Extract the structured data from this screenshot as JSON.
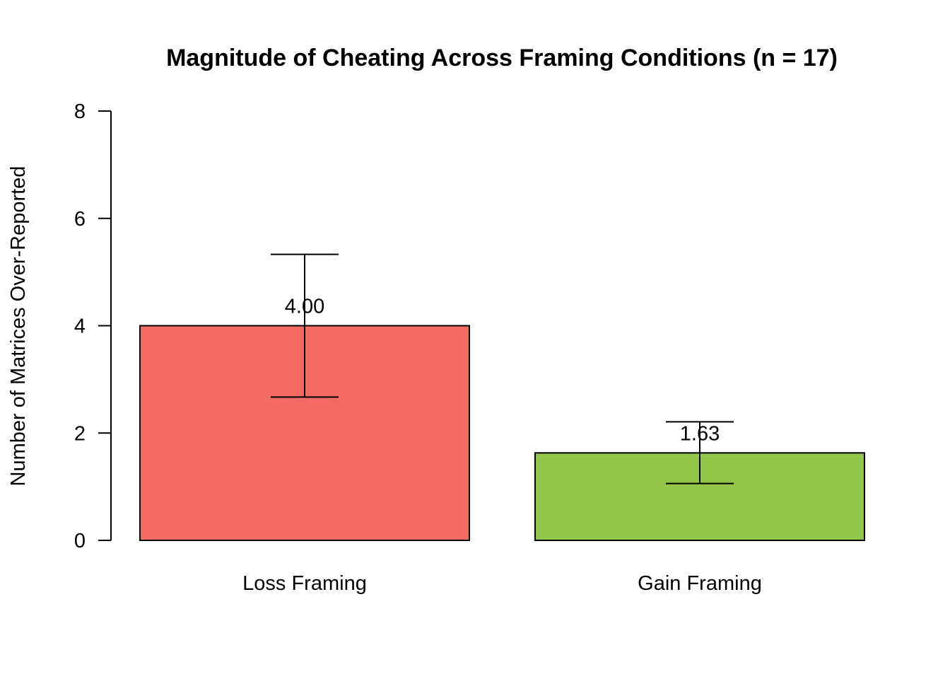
{
  "chart_data": {
    "type": "bar",
    "title": "Magnitude of Cheating Across Framing Conditions (n = 17)",
    "xlabel": "",
    "ylabel": "Number of Matrices Over-Reported",
    "categories": [
      "Loss Framing",
      "Gain Framing"
    ],
    "values": [
      4.0,
      1.63
    ],
    "data_labels": [
      "4.00",
      "1.63"
    ],
    "error_bars": [
      {
        "lower": 2.67,
        "upper": 5.33
      },
      {
        "lower": 1.06,
        "upper": 2.21
      }
    ],
    "colors": [
      "#F46B61",
      "#93C64B"
    ],
    "ylim": [
      0,
      8
    ],
    "yticks": [
      0,
      2,
      4,
      6,
      8
    ],
    "ytick_labels": [
      "0",
      "2",
      "4",
      "6",
      "8"
    ],
    "grid": false,
    "legend": "none"
  }
}
